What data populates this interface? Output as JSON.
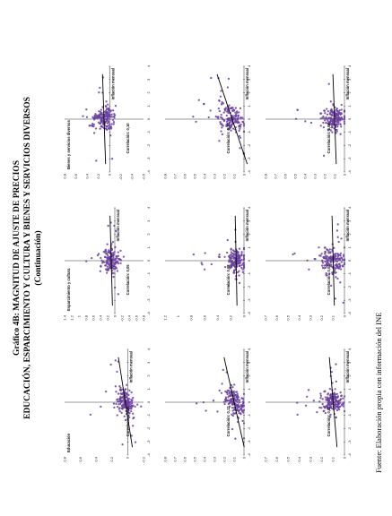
{
  "title": {
    "line1": "Gráfico 4B: MAGNITUD DE AJUSTE DE PRECIOS",
    "line2": "EDUCACIÓN, ESPARCIMIENTO Y CULTURA Y BIENES Y SERVICIOS DIVERSOS",
    "line3": "(Continuación)"
  },
  "source": "Fuente: Elaboración propia con información del INE",
  "colors": {
    "points": "#6a3fa0",
    "line": "#000000"
  },
  "panel_labels": {
    "educacion": "Educación",
    "esparcimiento": "Esparcimiento y cultura",
    "bienes": "Bienes y servicios diversos",
    "ajuste": "Inflación mensual"
  },
  "chart_data": [
    {
      "type": "scatter",
      "row": 1,
      "col": 1,
      "label": "Educación",
      "annotation": "Correlación: 0,26",
      "xlabel": "Inflación mensual",
      "x_ticks": [
        "-4",
        "-3",
        "-2",
        "-1",
        "0",
        "1",
        "2",
        "3",
        "4"
      ],
      "y_ticks": [
        "-0.2",
        "0",
        "0.2",
        "0.4",
        "0.6",
        "0.8"
      ],
      "xlim": [
        -4,
        4
      ],
      "ylim": [
        -0.2,
        0.8
      ],
      "slope": 0.026,
      "intercept": 0.03,
      "x_spread": 1.0,
      "y_spread": 0.06,
      "seed": 11
    },
    {
      "type": "scatter",
      "row": 1,
      "col": 2,
      "label": "Esparcimiento y cultura",
      "annotation": "Correlación: 0,05",
      "xlabel": "Inflación mensual",
      "x_ticks": [
        "-4",
        "-3",
        "-2",
        "-1",
        "0",
        "1",
        "2",
        "3",
        "4"
      ],
      "y_ticks": [
        "-0.8",
        "-0.6",
        "-0.4",
        "-0.2",
        "0",
        "0.2",
        "0.4",
        "0.6",
        "0.8",
        "1",
        "1.2",
        "1.4"
      ],
      "xlim": [
        -4,
        4
      ],
      "ylim": [
        -0.8,
        1.4
      ],
      "slope": 0.01,
      "intercept": 0.1,
      "x_spread": 0.9,
      "y_spread": 0.12,
      "seed": 23
    },
    {
      "type": "scatter",
      "row": 1,
      "col": 3,
      "label": "Bienes y servicios diversos",
      "annotation": "Correlación: 0,10",
      "xlabel": "Inflación mensual",
      "x_ticks": [
        "-4",
        "-3",
        "-2",
        "-1",
        "0",
        "1",
        "2",
        "3",
        "4"
      ],
      "y_ticks": [
        "-0.6",
        "-0.4",
        "-0.2",
        "0",
        "0.2",
        "0.4",
        "0.6",
        "0.8"
      ],
      "xlim": [
        -4,
        4
      ],
      "ylim": [
        -0.6,
        0.8
      ],
      "slope": 0.008,
      "intercept": 0.1,
      "x_spread": 0.8,
      "y_spread": 0.1,
      "seed": 37
    },
    {
      "type": "scatter",
      "row": 2,
      "col": 1,
      "label": "",
      "annotation": "Correlación: 0,12",
      "xlabel": "Inflación mensual",
      "x_ticks": [
        "-4",
        "-3",
        "-2",
        "-1",
        "0",
        "1",
        "2",
        "3",
        "4"
      ],
      "y_ticks": [
        "0",
        "0.1",
        "0.2",
        "0.3",
        "0.4",
        "0.5",
        "0.6",
        "0.7",
        "0.8"
      ],
      "xlim": [
        -4,
        4
      ],
      "ylim": [
        0,
        0.8
      ],
      "slope": 0.03,
      "intercept": 0.1,
      "x_spread": 0.9,
      "y_spread": 0.05,
      "seed": 41
    },
    {
      "type": "scatter",
      "row": 2,
      "col": 2,
      "label": "",
      "annotation": "Correlación: 0,03",
      "xlabel": "Inflación mensual",
      "x_ticks": [
        "-4",
        "-3",
        "-2",
        "-1",
        "0",
        "1",
        "2",
        "3",
        "4"
      ],
      "y_ticks": [
        "0",
        "0.2",
        "0.4",
        "0.6",
        "0.8",
        "1",
        "1.2"
      ],
      "xlim": [
        -4,
        4
      ],
      "ylim": [
        0,
        1.2
      ],
      "slope": 0.004,
      "intercept": 0.12,
      "x_spread": 0.8,
      "y_spread": 0.07,
      "seed": 53
    },
    {
      "type": "scatter",
      "row": 2,
      "col": 3,
      "label": "",
      "annotation": "Correlación: 0,28",
      "xlabel": "Inflación mensual",
      "x_ticks": [
        "-4",
        "-3",
        "-2",
        "-1",
        "0",
        "1",
        "2",
        "3",
        "4"
      ],
      "y_ticks": [
        "0",
        "0.1",
        "0.2",
        "0.3",
        "0.4",
        "0.5",
        "0.6",
        "0.7",
        "0.8"
      ],
      "xlim": [
        -4,
        4
      ],
      "ylim": [
        0,
        0.8
      ],
      "slope": 0.045,
      "intercept": 0.12,
      "x_spread": 0.9,
      "y_spread": 0.06,
      "seed": 67
    },
    {
      "type": "scatter",
      "row": 3,
      "col": 1,
      "label": "",
      "annotation": "Correlación: 0,11",
      "xlabel": "Inflación mensual",
      "x_ticks": [
        "-4",
        "-3",
        "-2",
        "-1",
        "0",
        "1",
        "2",
        "3",
        "4"
      ],
      "y_ticks": [
        "0",
        "0.1",
        "0.2",
        "0.3",
        "0.4",
        "0.5",
        "0.6",
        "0.7"
      ],
      "xlim": [
        -4,
        4
      ],
      "ylim": [
        0,
        0.7
      ],
      "slope": 0.01,
      "intercept": 0.1,
      "x_spread": 0.8,
      "y_spread": 0.05,
      "seed": 71
    },
    {
      "type": "scatter",
      "row": 3,
      "col": 2,
      "label": "",
      "annotation": "Correlación: 0,04",
      "xlabel": "Inflación mensual",
      "x_ticks": [
        "-4",
        "-3",
        "-2",
        "-1",
        "0",
        "1",
        "2",
        "3",
        "4"
      ],
      "y_ticks": [
        "0",
        "0.1",
        "0.2",
        "0.3",
        "0.4",
        "0.5",
        "0.6",
        "0.7"
      ],
      "xlim": [
        -4,
        4
      ],
      "ylim": [
        0,
        0.7
      ],
      "slope": 0.003,
      "intercept": 0.1,
      "x_spread": 0.9,
      "y_spread": 0.06,
      "seed": 83
    },
    {
      "type": "scatter",
      "row": 3,
      "col": 3,
      "label": "",
      "annotation": "Correlación: 0,08",
      "xlabel": "Inflación mensual",
      "x_ticks": [
        "-4",
        "-3",
        "-2",
        "-1",
        "0",
        "1",
        "2",
        "3",
        "4"
      ],
      "y_ticks": [
        "0",
        "0.1",
        "0.2",
        "0.3",
        "0.4",
        "0.5",
        "0.6",
        "0.7",
        "0.8"
      ],
      "xlim": [
        -4,
        4
      ],
      "ylim": [
        0,
        0.8
      ],
      "slope": 0.005,
      "intercept": 0.1,
      "x_spread": 0.8,
      "y_spread": 0.06,
      "seed": 97
    }
  ]
}
